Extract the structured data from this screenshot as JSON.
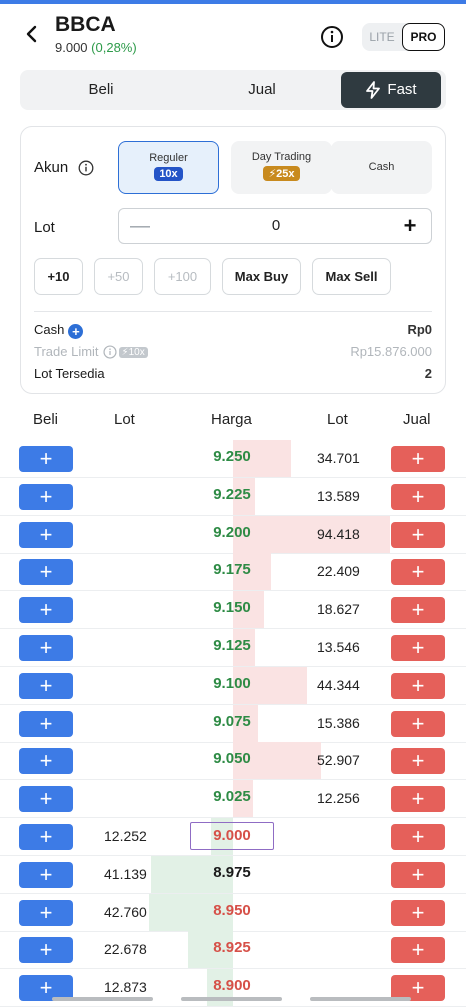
{
  "header": {
    "ticker": "BBCA",
    "price": "9.000",
    "change": "(0,28%)",
    "mode_lite": "LITE",
    "mode_pro": "PRO"
  },
  "tabs": [
    "Beli",
    "Jual",
    "Fast"
  ],
  "order_form": {
    "akun_label": "Akun",
    "accounts": [
      {
        "title": "Reguler",
        "badge": "10x",
        "selected": true
      },
      {
        "title": "Day Trading",
        "badge": "⚡25x",
        "selected": false
      },
      {
        "title": "Cash",
        "badge": "",
        "selected": false
      }
    ],
    "lot_label": "Lot",
    "lot_minus": "—",
    "lot_value": "0",
    "lot_plus": "+",
    "quick_buttons": [
      "+10",
      "+50",
      "+100",
      "Max Buy",
      "Max Sell"
    ],
    "summary": {
      "cash_label": "Cash",
      "cash_value": "Rp0",
      "trade_limit_label": "Trade Limit",
      "trade_limit_badge": "⚡10x",
      "trade_limit_value": "Rp15.876.000",
      "lot_available_label": "Lot Tersedia",
      "lot_available_value": "2"
    }
  },
  "order_book": {
    "headers": [
      "Beli",
      "Lot",
      "Harga",
      "Lot",
      "Jual"
    ],
    "buy_symbol": "+",
    "sell_symbol": "+",
    "rows": [
      {
        "bid_lot": "",
        "price": "9.250",
        "ask_lot": "34.701",
        "color": "up",
        "ask_fill": 0.37,
        "bid_fill": 0
      },
      {
        "bid_lot": "",
        "price": "9.225",
        "ask_lot": "13.589",
        "color": "up",
        "ask_fill": 0.14,
        "bid_fill": 0
      },
      {
        "bid_lot": "",
        "price": "9.200",
        "ask_lot": "94.418",
        "color": "up",
        "ask_fill": 1.0,
        "bid_fill": 0
      },
      {
        "bid_lot": "",
        "price": "9.175",
        "ask_lot": "22.409",
        "color": "up",
        "ask_fill": 0.24,
        "bid_fill": 0
      },
      {
        "bid_lot": "",
        "price": "9.150",
        "ask_lot": "18.627",
        "color": "up",
        "ask_fill": 0.2,
        "bid_fill": 0
      },
      {
        "bid_lot": "",
        "price": "9.125",
        "ask_lot": "13.546",
        "color": "up",
        "ask_fill": 0.14,
        "bid_fill": 0
      },
      {
        "bid_lot": "",
        "price": "9.100",
        "ask_lot": "44.344",
        "color": "up",
        "ask_fill": 0.47,
        "bid_fill": 0
      },
      {
        "bid_lot": "",
        "price": "9.075",
        "ask_lot": "15.386",
        "color": "up",
        "ask_fill": 0.16,
        "bid_fill": 0
      },
      {
        "bid_lot": "",
        "price": "9.050",
        "ask_lot": "52.907",
        "color": "up",
        "ask_fill": 0.56,
        "bid_fill": 0
      },
      {
        "bid_lot": "",
        "price": "9.025",
        "ask_lot": "12.256",
        "color": "up",
        "ask_fill": 0.13,
        "bid_fill": 0
      },
      {
        "bid_lot": "12.252",
        "price": "9.000",
        "ask_lot": "",
        "color": "down",
        "ask_fill": 0,
        "bid_fill": 0.12,
        "current": true
      },
      {
        "bid_lot": "41.139",
        "price": "8.975",
        "ask_lot": "",
        "color": "flat",
        "ask_fill": 0,
        "bid_fill": 0.44
      },
      {
        "bid_lot": "42.760",
        "price": "8.950",
        "ask_lot": "",
        "color": "down",
        "ask_fill": 0,
        "bid_fill": 0.45
      },
      {
        "bid_lot": "22.678",
        "price": "8.925",
        "ask_lot": "",
        "color": "down",
        "ask_fill": 0,
        "bid_fill": 0.24
      },
      {
        "bid_lot": "12.873",
        "price": "8.900",
        "ask_lot": "",
        "color": "down",
        "ask_fill": 0,
        "bid_fill": 0.14
      }
    ]
  },
  "colors": {
    "buy_button": "#3d7be6",
    "sell_button": "#e5605a",
    "price_up": "#2e8b45",
    "price_down": "#d65048",
    "ask_bar": "#fae3e3",
    "bid_bar": "#e2f1e6"
  }
}
